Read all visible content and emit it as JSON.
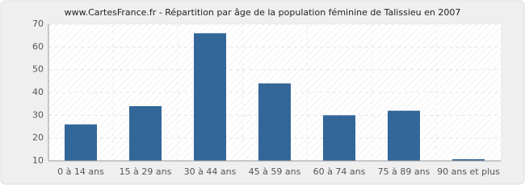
{
  "chart_data": {
    "type": "bar",
    "title": "www.CartesFrance.fr - Répartition par âge de la population féminine de Talissieu en 2007",
    "categories": [
      "0 à 14 ans",
      "15 à 29 ans",
      "30 à 44 ans",
      "45 à 59 ans",
      "60 à 74 ans",
      "75 à 89 ans",
      "90 ans et plus"
    ],
    "values": [
      26,
      34,
      66,
      44,
      30,
      32,
      10
    ],
    "color": "#336699",
    "ylim": [
      10,
      70
    ],
    "yticks": [
      10,
      20,
      30,
      40,
      50,
      60,
      70
    ],
    "grid": true
  }
}
